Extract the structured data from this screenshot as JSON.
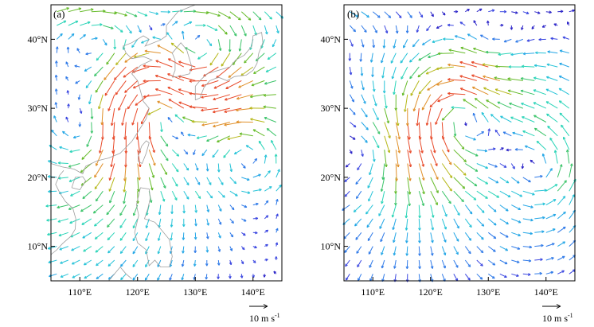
{
  "figure": {
    "panels": [
      {
        "label": "(a)",
        "lat_ticks": [
          "10°N",
          "20°N",
          "30°N",
          "40°N"
        ],
        "lon_ticks": [
          "110°E",
          "120°E",
          "130°E",
          "140°E"
        ],
        "reference_vector": {
          "label": "10 m s",
          "superscript": "-1"
        },
        "coastline_color": "#9e9e9e",
        "shows_coastlines": true,
        "circulations": [
          {
            "lon": 124,
            "lat": 30,
            "type": "cyclone",
            "strength": 1.0
          },
          {
            "lon": 131,
            "lat": 37,
            "type": "anticyclone",
            "strength": 0.8
          },
          {
            "lon": 112,
            "lat": 26,
            "type": "anticyclone",
            "strength": 0.5
          },
          {
            "lon": 139,
            "lat": 24,
            "type": "cyclone",
            "strength": 0.5
          },
          {
            "lon": 114,
            "lat": 39,
            "type": "anticyclone",
            "strength": 0.35
          }
        ]
      },
      {
        "label": "(b)",
        "lat_ticks": [
          "10°N",
          "20°N",
          "30°N",
          "40°N"
        ],
        "lon_ticks": [
          "110°E",
          "120°E",
          "130°E",
          "140°E"
        ],
        "reference_vector": {
          "label": "10 m s",
          "superscript": "-1"
        },
        "shows_coastlines": false,
        "circulations": [
          {
            "lon": 125,
            "lat": 29,
            "type": "cyclone",
            "strength": 0.9
          },
          {
            "lon": 139,
            "lat": 21,
            "type": "cyclone",
            "strength": 0.5
          },
          {
            "lon": 110,
            "lat": 24,
            "type": "anticyclone",
            "strength": 0.4
          },
          {
            "lon": 131,
            "lat": 38,
            "type": "anticyclone",
            "strength": 0.35
          }
        ]
      }
    ],
    "colors": {
      "vector_palette": [
        "#2b24c8",
        "#3a46e0",
        "#2f7ae8",
        "#23a6e6",
        "#27c3d8",
        "#2bd4b8",
        "#3cc46a",
        "#66bb2a",
        "#b6b81a",
        "#e0902a",
        "#e84a2a"
      ],
      "frame": "#000000"
    }
  }
}
